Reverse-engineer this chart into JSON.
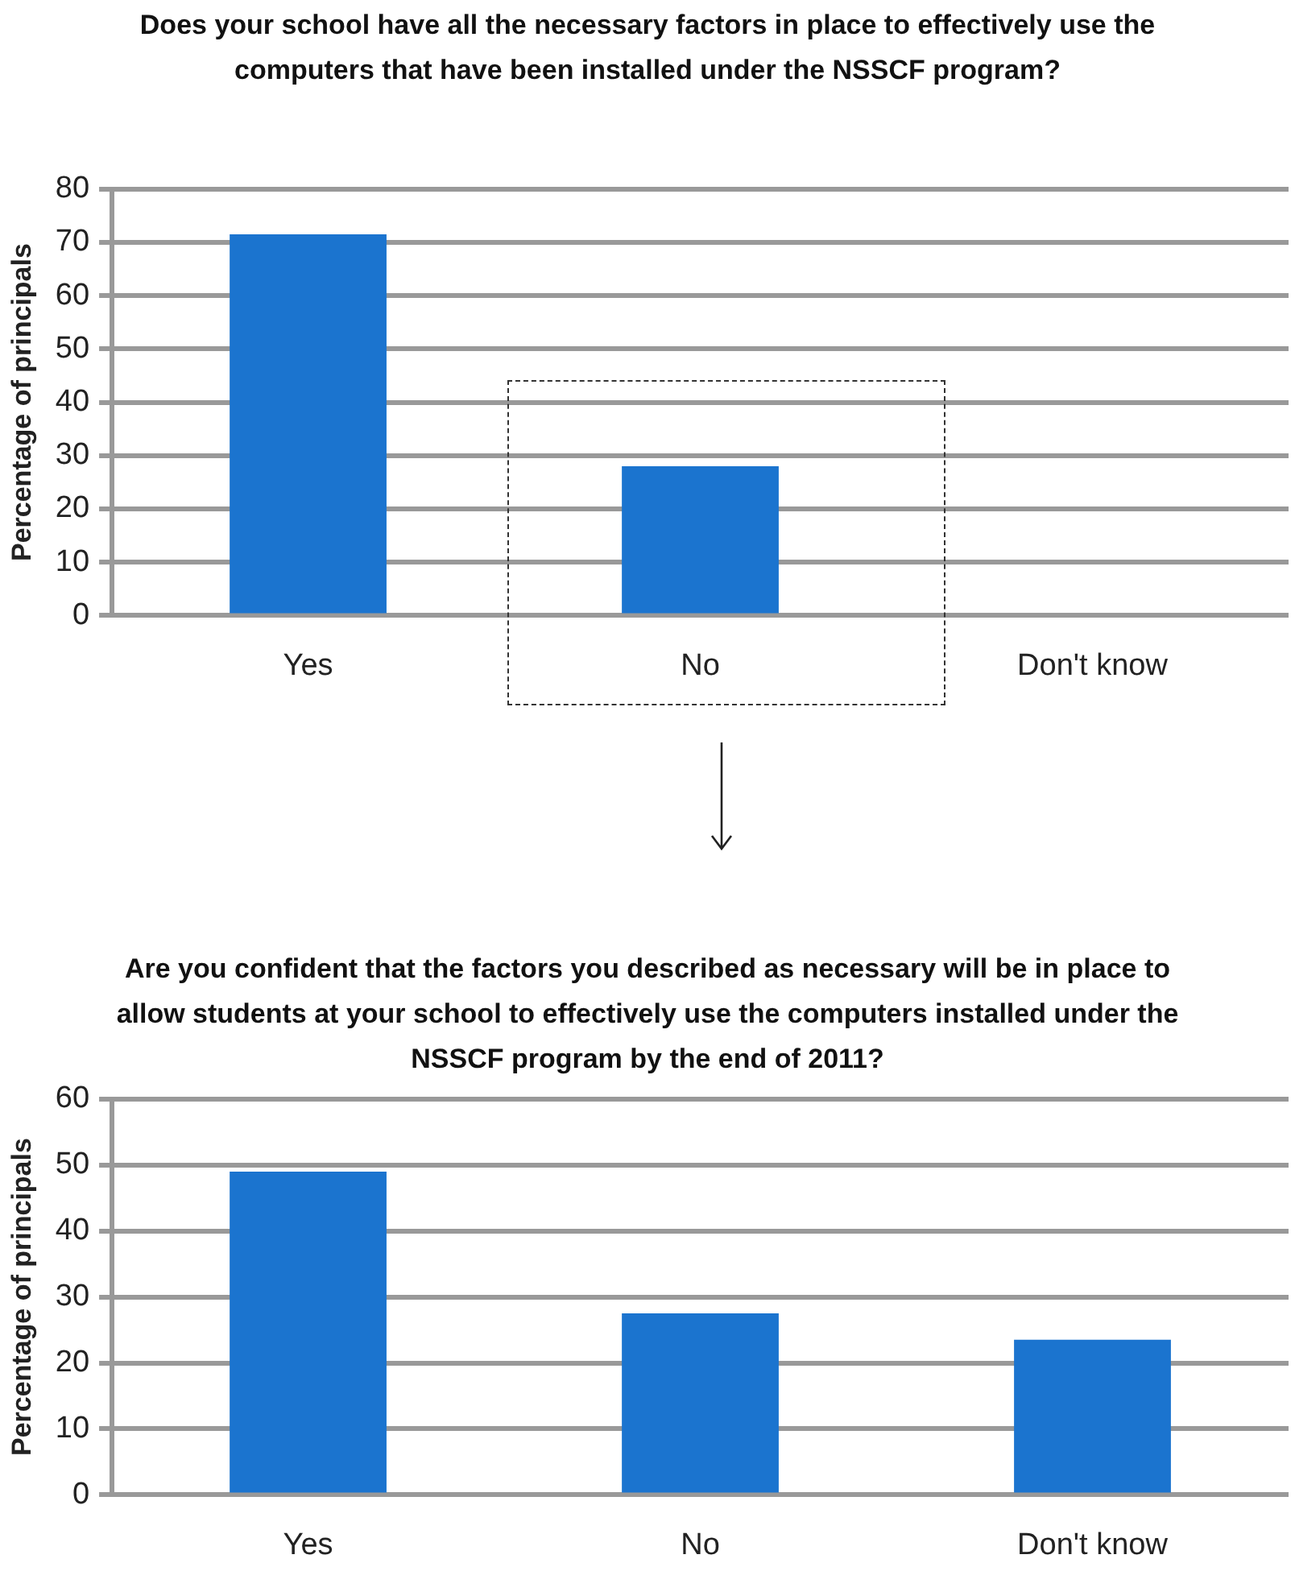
{
  "chart_data": [
    {
      "type": "bar",
      "title": "Does your school have all the necessary factors in place to effectively use the computers that have been installed under the NSSCF program?",
      "ylabel": "Percentage of principals",
      "categories": [
        "Yes",
        "No",
        "Don't know"
      ],
      "values": [
        71.5,
        28,
        0
      ],
      "color": "#1b74cf",
      "ylim": [
        0,
        80
      ],
      "yticks": [
        0,
        10,
        20,
        30,
        40,
        50,
        60,
        70,
        80
      ],
      "grid": "y"
    },
    {
      "type": "bar",
      "title": "Are you confident that the factors you described as necessary will be in place to allow students at your school to effectively use the computers installed under the NSSCF program by the end of 2011?",
      "ylabel": "Percentage of principals",
      "categories": [
        "Yes",
        "No",
        "Don't know"
      ],
      "values": [
        49,
        27.5,
        23.5
      ],
      "color": "#1b74cf",
      "ylim": [
        0,
        60
      ],
      "yticks": [
        0,
        10,
        20,
        30,
        40,
        50,
        60
      ],
      "grid": "y"
    }
  ]
}
